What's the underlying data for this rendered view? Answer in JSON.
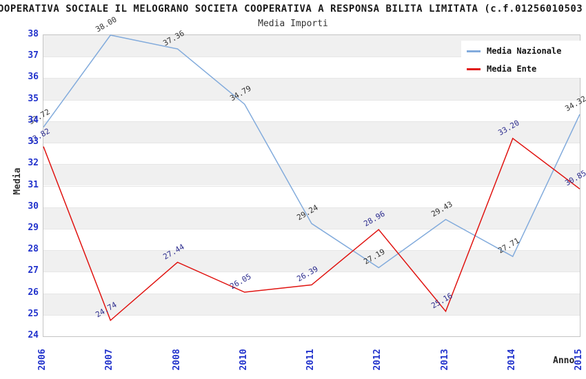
{
  "title": "OOPERATIVA SOCIALE IL MELOGRANO SOCIETA COOPERATIVA A RESPONSA BILITA LIMITATA (c.f.01256010503",
  "chart_data": {
    "type": "line",
    "title": "Media Importi",
    "xlabel": "Anno",
    "ylabel": "Media",
    "categories": [
      "2006",
      "2007",
      "2008",
      "2010",
      "2011",
      "2012",
      "2013",
      "2014",
      "2015"
    ],
    "series": [
      {
        "name": "Media Nazionale",
        "color": "#82abdc",
        "label_color": "#333333",
        "values": [
          33.72,
          38.0,
          37.36,
          34.79,
          29.24,
          27.19,
          29.43,
          27.71,
          34.32
        ]
      },
      {
        "name": "Media Ente",
        "color": "#e01310",
        "label_color": "#2d2d8e",
        "values": [
          32.82,
          24.74,
          27.44,
          26.05,
          26.39,
          28.96,
          25.16,
          33.2,
          30.85
        ]
      }
    ],
    "ylim": [
      24,
      38
    ],
    "ytick_step": 1,
    "grid": true,
    "band_colors": [
      "#f0f0f0",
      "#ffffff"
    ],
    "axis_tick_color": "#2233cc",
    "legend_position": "top-right"
  }
}
